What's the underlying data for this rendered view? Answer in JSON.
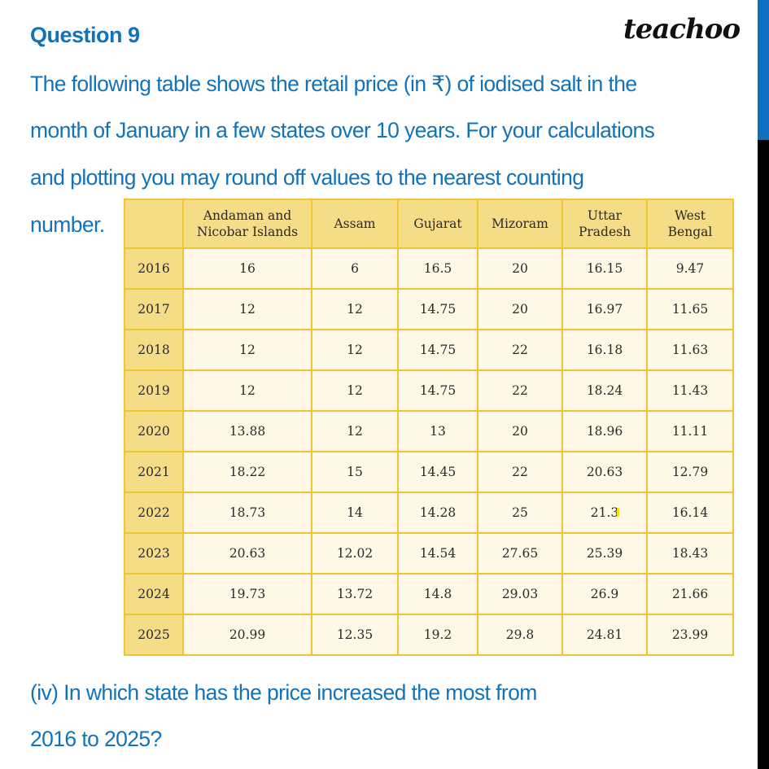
{
  "header": {
    "question_title": "Question 9",
    "logo": "teachoo"
  },
  "question": {
    "lines": [
      "The following table shows the retail price (in ₹) of iodised salt in the",
      "month of January in a few states over 10 years. For your calculations",
      "and plotting you may round off values to the nearest counting",
      "number."
    ],
    "sub_question_lines": [
      "(iv) In which state has the price increased the most from",
      "2016 to 2025?"
    ]
  },
  "colors": {
    "text_blue": "#1273b8",
    "table_border": "#f0c531",
    "header_fill": "#f5dc86",
    "cell_fill": "#fdf9e6",
    "side_bar_blue": "#0e70c0"
  },
  "chart_data": {
    "type": "table",
    "title": "Retail price (in ₹) of iodised salt in January",
    "columns": [
      "",
      "Andaman and Nicobar Islands",
      "Assam",
      "Gujarat",
      "Mizoram",
      "Uttar Pradesh",
      "West Bengal"
    ],
    "column_lines": [
      [
        "",
        ""
      ],
      [
        "Andaman and",
        "Nicobar Islands"
      ],
      [
        "Assam",
        ""
      ],
      [
        "Gujarat",
        ""
      ],
      [
        "Mizoram",
        ""
      ],
      [
        "Uttar",
        "Pradesh"
      ],
      [
        "West",
        "Bengal"
      ]
    ],
    "rows": [
      [
        "2016",
        "16",
        "6",
        "16.5",
        "20",
        "16.15",
        "9.47"
      ],
      [
        "2017",
        "12",
        "12",
        "14.75",
        "20",
        "16.97",
        "11.65"
      ],
      [
        "2018",
        "12",
        "12",
        "14.75",
        "22",
        "16.18",
        "11.63"
      ],
      [
        "2019",
        "12",
        "12",
        "14.75",
        "22",
        "18.24",
        "11.43"
      ],
      [
        "2020",
        "13.88",
        "12",
        "13",
        "20",
        "18.96",
        "11.11"
      ],
      [
        "2021",
        "18.22",
        "15",
        "14.45",
        "22",
        "20.63",
        "12.79"
      ],
      [
        "2022",
        "18.73",
        "14",
        "14.28",
        "25",
        "21.3",
        "16.14"
      ],
      [
        "2023",
        "20.63",
        "12.02",
        "14.54",
        "27.65",
        "25.39",
        "18.43"
      ],
      [
        "2024",
        "19.73",
        "13.72",
        "14.8",
        "29.03",
        "26.9",
        "21.66"
      ],
      [
        "2025",
        "20.99",
        "12.35",
        "19.2",
        "29.8",
        "24.81",
        "23.99"
      ]
    ]
  }
}
